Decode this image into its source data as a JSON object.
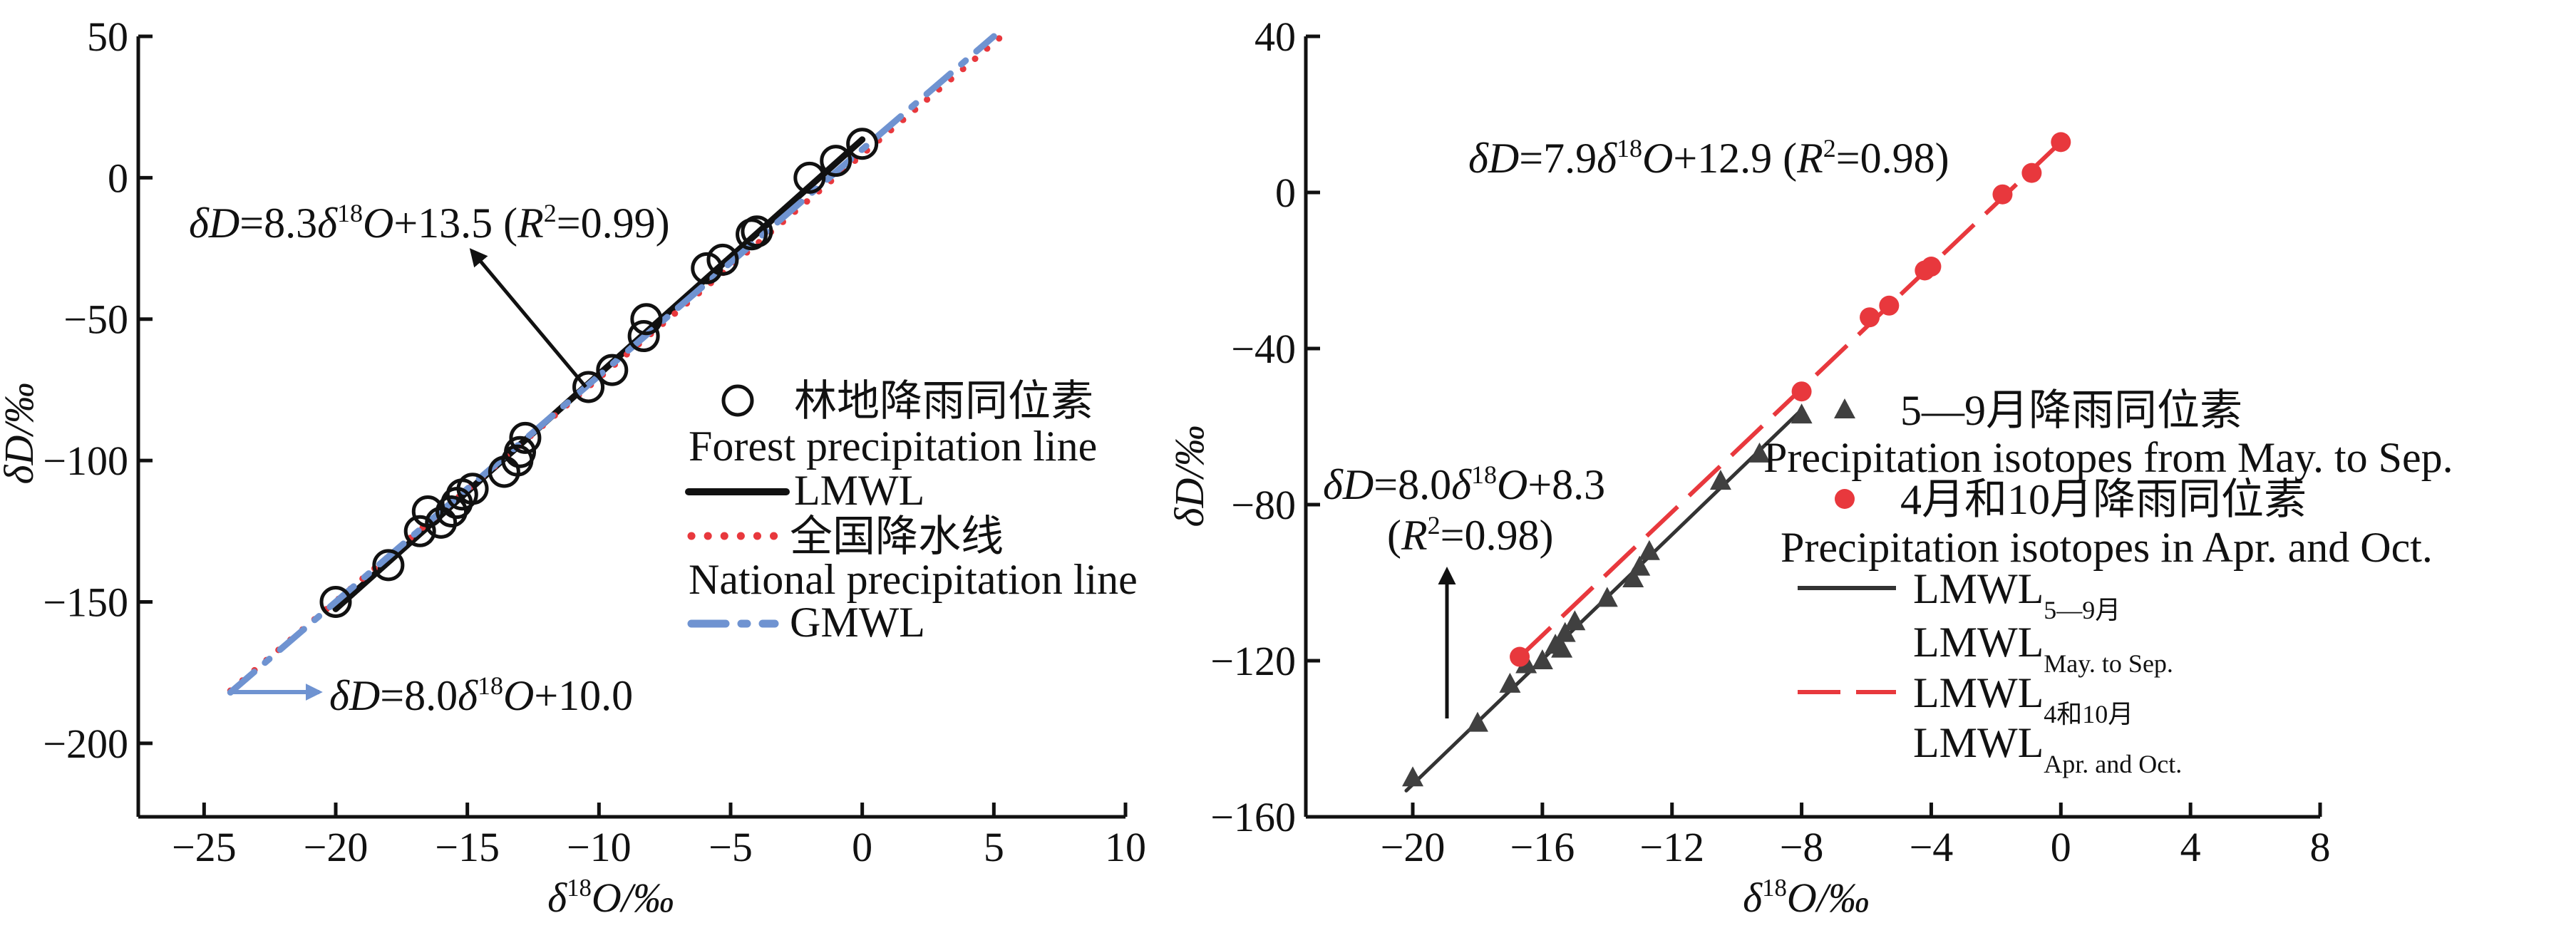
{
  "chart_data": [
    {
      "type": "scatter",
      "panel": "left",
      "xlabel": [
        {
          "t": "δ",
          "i": 1
        },
        {
          "t": "18",
          "sup": 1
        },
        {
          "t": "O",
          "i": 1
        },
        {
          "t": "/‰",
          "i": 1
        }
      ],
      "ylabel": [
        {
          "t": "δD",
          "i": 1
        },
        {
          "t": "/‰",
          "i": 1
        }
      ],
      "xlim": [
        -27.5,
        10
      ],
      "ylim": [
        -226,
        50
      ],
      "xticks": [
        -25,
        -20,
        -15,
        -10,
        -5,
        0,
        5,
        10
      ],
      "xtick_labels": [
        "−25",
        "−20",
        "−15",
        "−10",
        "−5",
        "0",
        "5",
        "10"
      ],
      "yticks": [
        -200,
        -150,
        -100,
        -50,
        0,
        50
      ],
      "ytick_labels": [
        "−200",
        "−150",
        "−100",
        "−50",
        "0",
        "50"
      ],
      "grid": false,
      "legend_position": "right-middle",
      "series": [
        {
          "name": "林地降雨同位素",
          "name_en": "Forest precipitation line",
          "marker": "open-circle",
          "color": "#111111",
          "points": [
            [
              0,
              12
            ],
            [
              -1,
              6
            ],
            [
              -2,
              0
            ],
            [
              -4,
              -19
            ],
            [
              -4.2,
              -20
            ],
            [
              -5.3,
              -29
            ],
            [
              -5.9,
              -32
            ],
            [
              -8.2,
              -50
            ],
            [
              -8.3,
              -56
            ],
            [
              -9.5,
              -68
            ],
            [
              -10.4,
              -74
            ],
            [
              -12.8,
              -92
            ],
            [
              -13,
              -97
            ],
            [
              -13.1,
              -100
            ],
            [
              -13.6,
              -104
            ],
            [
              -14.8,
              -110
            ],
            [
              -15.2,
              -112
            ],
            [
              -15.4,
              -115
            ],
            [
              -15.6,
              -118
            ],
            [
              -16,
              -122
            ],
            [
              -16.5,
              -118
            ],
            [
              -16.8,
              -125
            ],
            [
              -18,
              -137
            ],
            [
              -20,
              -150
            ]
          ]
        }
      ],
      "lines": [
        {
          "name": "LMWL",
          "slope": 8.3,
          "intercept": 13.5,
          "x_range": [
            -20,
            0
          ],
          "style": "solid",
          "color": "#111111"
        },
        {
          "name": "全国降水线",
          "name_en": "National precipitation line",
          "slope": 7.9,
          "intercept": 8.2,
          "x_range": [
            -24,
            5.5
          ],
          "style": "dotted",
          "color": "#e8383d"
        },
        {
          "name": "GMWL",
          "slope": 8.0,
          "intercept": 10.0,
          "x_range": [
            -24,
            5
          ],
          "style": "dash-dot",
          "color": "#6f93d1"
        }
      ],
      "annotations": [
        [
          {
            "t": "δD",
            "i": 1
          },
          {
            "t": "=8.3"
          },
          {
            "t": "δ",
            "i": 1
          },
          {
            "t": "18",
            "sup": 1
          },
          {
            "t": "O",
            "i": 1
          },
          {
            "t": "+13.5 ("
          },
          {
            "t": "R",
            "i": 1
          },
          {
            "t": "2",
            "sup": 1
          },
          {
            "t": "=0.99)"
          }
        ],
        [
          {
            "t": "δD",
            "i": 1
          },
          {
            "t": "=8.0"
          },
          {
            "t": "δ",
            "i": 1
          },
          {
            "t": "18",
            "sup": 1
          },
          {
            "t": "O",
            "i": 1
          },
          {
            "t": "+10.0"
          }
        ]
      ]
    },
    {
      "type": "scatter",
      "panel": "right",
      "xlabel": [
        {
          "t": "δ",
          "i": 1
        },
        {
          "t": "18",
          "sup": 1
        },
        {
          "t": "O",
          "i": 1
        },
        {
          "t": "/‰",
          "i": 1
        }
      ],
      "ylabel": [
        {
          "t": "δD",
          "i": 1
        },
        {
          "t": "/‰",
          "i": 1
        }
      ],
      "xlim": [
        -23.3,
        8
      ],
      "ylim": [
        -160,
        40
      ],
      "xticks": [
        -20,
        -16,
        -12,
        -8,
        -4,
        0,
        4,
        8
      ],
      "xtick_labels": [
        "−20",
        "−16",
        "−12",
        "−8",
        "−4",
        "0",
        "4",
        "8"
      ],
      "yticks": [
        -160,
        -120,
        -80,
        -40,
        0,
        40
      ],
      "ytick_labels": [
        "−160",
        "−120",
        "−80",
        "−40",
        "0",
        "40"
      ],
      "grid": false,
      "legend_position": "right-middle",
      "series": [
        {
          "name": "5—9月降雨同位素",
          "name_en": "Precipitation isotopes from May. to Sep.",
          "marker": "triangle",
          "color": "#404040",
          "points": [
            [
              -8,
              -57
            ],
            [
              -9.3,
              -67
            ],
            [
              -10.5,
              -74
            ],
            [
              -12.7,
              -92
            ],
            [
              -13,
              -96
            ],
            [
              -13.2,
              -99
            ],
            [
              -14,
              -104
            ],
            [
              -15,
              -110
            ],
            [
              -15.3,
              -113
            ],
            [
              -15.6,
              -116
            ],
            [
              -15.4,
              -117
            ],
            [
              -16,
              -120
            ],
            [
              -16.5,
              -121
            ],
            [
              -17,
              -126
            ],
            [
              -18,
              -136
            ],
            [
              -20,
              -150
            ]
          ]
        },
        {
          "name": "4月和10月降雨同位素",
          "name_en": "Precipitation isotopes in Apr. and Oct.",
          "marker": "filled-circle",
          "color": "#e8383d",
          "points": [
            [
              0,
              12.9
            ],
            [
              -0.9,
              5
            ],
            [
              -1.8,
              -0.5
            ],
            [
              -4,
              -19
            ],
            [
              -4.2,
              -20
            ],
            [
              -5.3,
              -29
            ],
            [
              -5.9,
              -32
            ],
            [
              -8,
              -51
            ],
            [
              -16.7,
              -119
            ]
          ]
        }
      ],
      "lines": [
        {
          "name": "LMWL",
          "sub": "5—9月",
          "name2": "LMWL",
          "sub2": "May. to Sep.",
          "slope": 8.0,
          "intercept": 8.3,
          "x_range": [
            -20.2,
            -8
          ],
          "style": "solid",
          "color": "#333333"
        },
        {
          "name": "LMWL",
          "sub": "4和10月",
          "name2": "LMWL",
          "sub2": "Apr. and Oct.",
          "slope": 7.9,
          "intercept": 12.9,
          "x_range": [
            -16.7,
            0
          ],
          "style": "dashed",
          "color": "#e8383d"
        }
      ],
      "annotations": [
        [
          {
            "t": "δD",
            "i": 1
          },
          {
            "t": "=7.9"
          },
          {
            "t": "δ",
            "i": 1
          },
          {
            "t": "18",
            "sup": 1
          },
          {
            "t": "O",
            "i": 1
          },
          {
            "t": "+12.9 ("
          },
          {
            "t": "R",
            "i": 1
          },
          {
            "t": "2",
            "sup": 1
          },
          {
            "t": "=0.98)"
          }
        ],
        [
          {
            "t": "δD",
            "i": 1
          },
          {
            "t": "=8.0"
          },
          {
            "t": "δ",
            "i": 1
          },
          {
            "t": "18",
            "sup": 1
          },
          {
            "t": "O",
            "i": 1
          },
          {
            "t": "+8.3"
          }
        ],
        [
          {
            "t": "("
          },
          {
            "t": "R",
            "i": 1
          },
          {
            "t": "2",
            "sup": 1
          },
          {
            "t": "=0.98)"
          }
        ]
      ]
    }
  ]
}
